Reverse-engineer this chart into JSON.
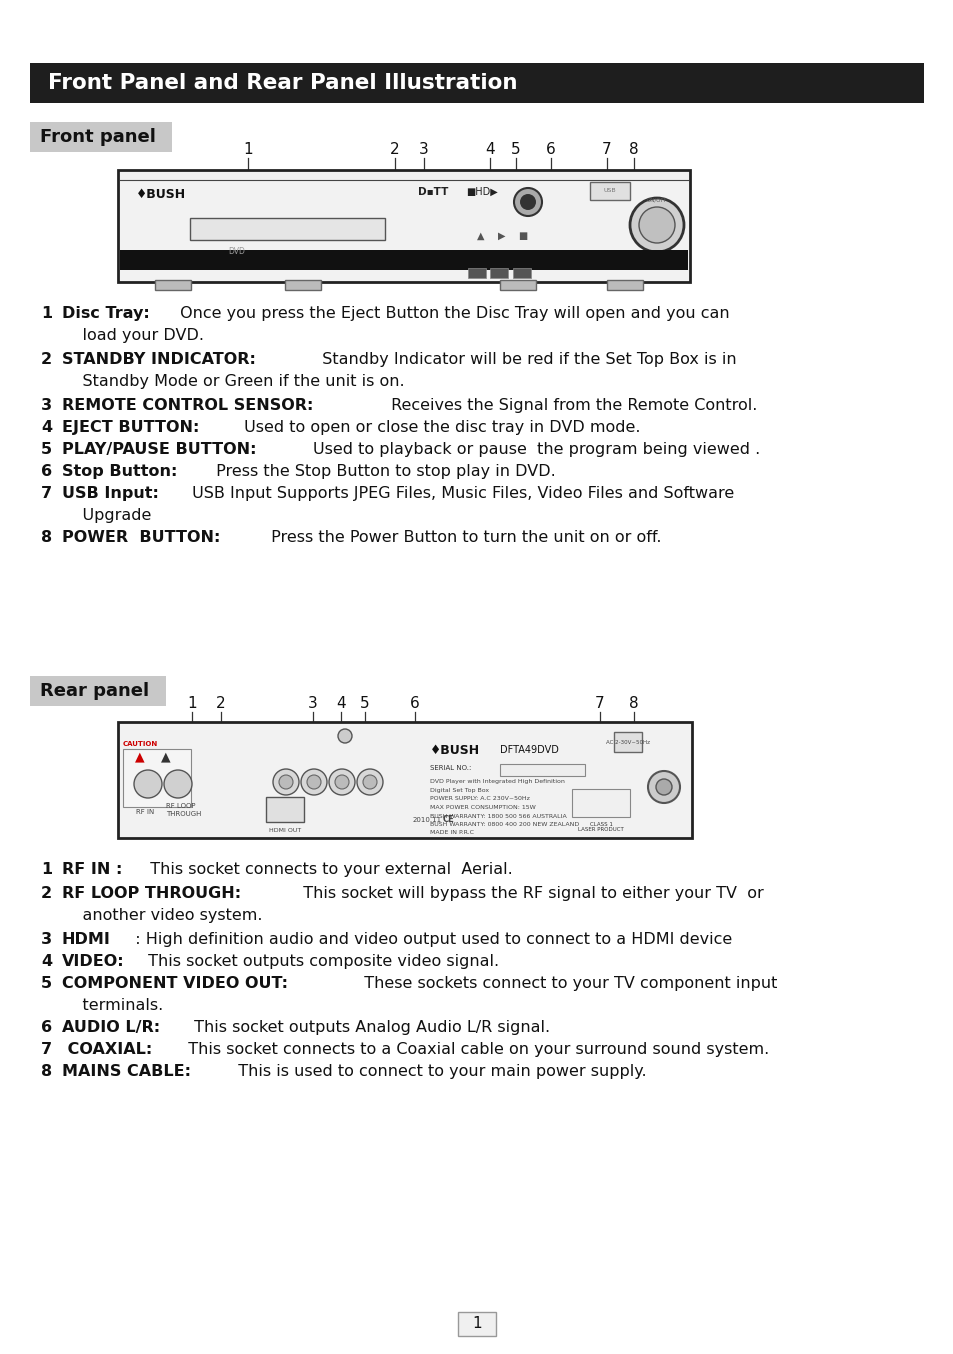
{
  "title": "Front Panel and Rear Panel Illustration",
  "title_bg": "#1e1e1e",
  "title_color": "#ffffff",
  "front_panel_label": "Front panel",
  "rear_panel_label": "Rear panel",
  "section_bg": "#c8c8c8",
  "page_bg": "#ffffff",
  "body_fontsize": 11.5,
  "front_numbers": [
    [
      248,
      "1"
    ],
    [
      395,
      "2"
    ],
    [
      424,
      "3"
    ],
    [
      490,
      "4"
    ],
    [
      516,
      "5"
    ],
    [
      551,
      "6"
    ],
    [
      607,
      "7"
    ],
    [
      634,
      "8"
    ]
  ],
  "rear_numbers": [
    [
      192,
      "1"
    ],
    [
      221,
      "2"
    ],
    [
      313,
      "3"
    ],
    [
      341,
      "4"
    ],
    [
      365,
      "5"
    ],
    [
      415,
      "6"
    ],
    [
      600,
      "7"
    ],
    [
      634,
      "8"
    ]
  ],
  "front_list": [
    [
      306,
      "1",
      "Disc Tray:",
      " Once you press the Eject Button the Disc Tray will open and you can"
    ],
    [
      328,
      "",
      "",
      "    load your DVD."
    ],
    [
      352,
      "2",
      "STANDBY INDICATOR:",
      "  Standby Indicator will be red if the Set Top Box is in"
    ],
    [
      374,
      "",
      "",
      "    Standby Mode or Green if the unit is on."
    ],
    [
      398,
      "3",
      "REMOTE CONTROL SENSOR:",
      " Receives the Signal from the Remote Control."
    ],
    [
      420,
      "4",
      "EJECT BUTTON:",
      " Used to open or close the disc tray in DVD mode."
    ],
    [
      442,
      "5",
      "PLAY/PAUSE BUTTON:",
      "Used to playback or pause  the program being viewed ."
    ],
    [
      464,
      "6",
      "Stop Button:",
      " Press the Stop Button to stop play in DVD."
    ],
    [
      486,
      "7",
      "USB Input:",
      " USB Input Supports JPEG Files, Music Files, Video Files and Software"
    ],
    [
      508,
      "",
      "",
      "    Upgrade"
    ],
    [
      530,
      "8",
      "POWER  BUTTON:",
      " Press the Power Button to turn the unit on or off."
    ]
  ],
  "rear_list": [
    [
      862,
      "1",
      "RF IN :",
      "  This socket connects to your external  Aerial."
    ],
    [
      886,
      "2",
      "RF LOOP THROUGH:",
      "  This socket will bypass the RF signal to either your TV  or"
    ],
    [
      908,
      "",
      "",
      "    another video system."
    ],
    [
      932,
      "3",
      "HDMI",
      "  : High definition audio and video output used to connect to a HDMI device"
    ],
    [
      954,
      "4",
      "VIDEO:",
      " This socket outputs composite video signal."
    ],
    [
      976,
      "5",
      "COMPONENT VIDEO OUT:",
      "  These sockets connect to your TV component input"
    ],
    [
      998,
      "",
      "",
      "    terminals."
    ],
    [
      1020,
      "6",
      "AUDIO L/R:",
      " This socket outputs Analog Audio L/R signal."
    ],
    [
      1042,
      "7",
      " COAXIAL:",
      "  This socket connects to a Coaxial cable on your surround sound system."
    ],
    [
      1064,
      "8",
      "MAINS CABLE:",
      "  This is used to connect to your main power supply."
    ]
  ],
  "page_number": "1"
}
